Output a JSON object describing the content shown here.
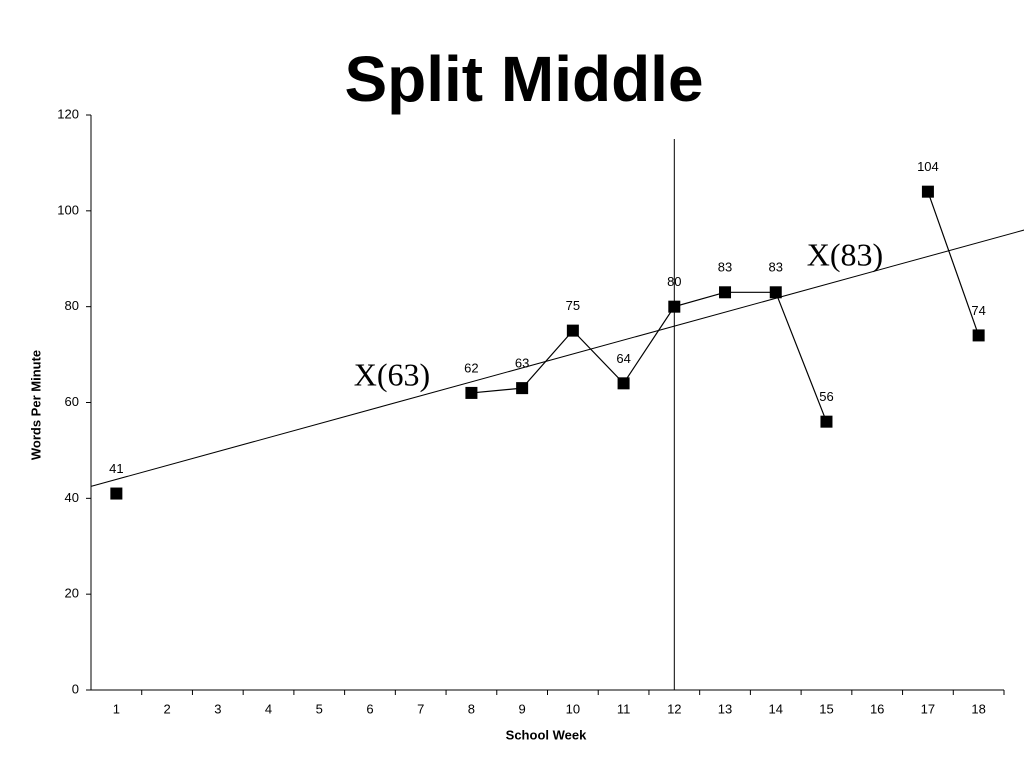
{
  "chart_data": {
    "type": "line",
    "title": "Split Middle",
    "x_label": "School Week",
    "y_label": "Words Per Minute",
    "x": [
      1,
      2,
      3,
      4,
      5,
      6,
      7,
      8,
      9,
      10,
      11,
      12,
      13,
      14,
      15,
      16,
      17,
      18
    ],
    "series": [
      {
        "color": "#000000",
        "values": [
          41,
          null,
          null,
          null,
          null,
          null,
          null,
          62,
          63,
          75,
          64,
          80,
          83,
          83,
          56,
          null,
          104,
          74
        ]
      }
    ],
    "xlim": [
      0.5,
      18.5
    ],
    "xticks": [
      1,
      2,
      3,
      4,
      5,
      6,
      7,
      8,
      9,
      10,
      11,
      12,
      13,
      14,
      15,
      16,
      17,
      18
    ],
    "ylim": [
      0,
      120
    ],
    "yticks": [
      0,
      20,
      40,
      60,
      80,
      100,
      120
    ],
    "grid": false,
    "trend_line": {
      "x": [
        0.5,
        18.9
      ],
      "y": [
        42.5,
        96
      ]
    },
    "phase_line": {
      "x": 12,
      "y": [
        0,
        115
      ]
    },
    "annotations": [
      "X(63)",
      "X(83)"
    ]
  }
}
